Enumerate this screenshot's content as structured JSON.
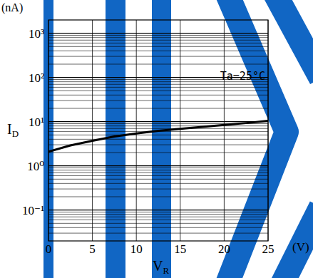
{
  "chart_data": {
    "type": "line",
    "y_unit": "(nA)",
    "x_unit": "(V)",
    "y_label": "ID",
    "x_label": "VR",
    "annotation": "Ta=25°C",
    "log": "y",
    "grid": true,
    "xlim": [
      0,
      25
    ],
    "xticks": [
      0,
      5,
      10,
      15,
      20,
      25
    ],
    "ylim": [
      0.02,
      2000
    ],
    "yticks": [
      {
        "value": 0.1,
        "label": "10⁻¹"
      },
      {
        "value": 1,
        "label": "10⁰"
      },
      {
        "value": 10,
        "label": "10¹"
      },
      {
        "value": 100,
        "label": "10²"
      },
      {
        "value": 1000,
        "label": "10³"
      }
    ],
    "series": [
      {
        "name": "Ta=25°C",
        "color": "#000000",
        "x": [
          0,
          2.5,
          5,
          7.5,
          10,
          12.5,
          15,
          17.5,
          20,
          22.5,
          25
        ],
        "values": [
          2.1,
          2.9,
          3.7,
          4.6,
          5.4,
          6.2,
          6.9,
          7.6,
          8.4,
          9.3,
          10.4
        ]
      }
    ]
  }
}
